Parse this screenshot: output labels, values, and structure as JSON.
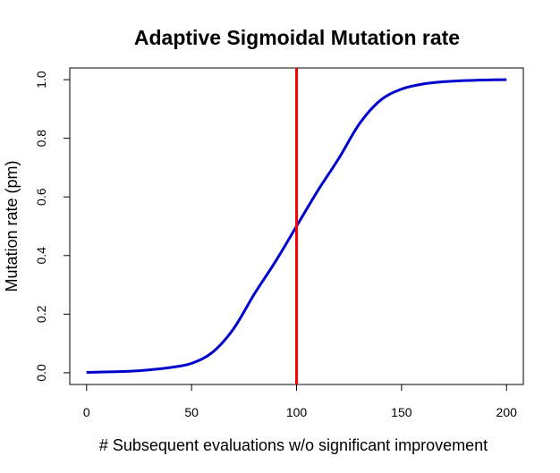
{
  "chart_data": {
    "type": "line",
    "title": "Adaptive Sigmoidal Mutation rate",
    "xlabel": "# Subsequent evaluations w/o significant improvement",
    "ylabel": "Mutation rate (pm)",
    "xlim": [
      -8,
      208
    ],
    "ylim": [
      -0.04,
      1.04
    ],
    "x_ticks": [
      0,
      50,
      100,
      150,
      200
    ],
    "y_ticks": [
      0.0,
      0.2,
      0.4,
      0.6,
      0.8,
      1.0
    ],
    "x_tick_labels": [
      "0",
      "50",
      "100",
      "150",
      "200"
    ],
    "y_tick_labels": [
      "0.0",
      "0.2",
      "0.4",
      "0.6",
      "0.8",
      "1.0"
    ],
    "grid": false,
    "series": [
      {
        "color": "#0000cd",
        "x": [
          0,
          10,
          20,
          30,
          40,
          50,
          60,
          70,
          80,
          90,
          100,
          110,
          120,
          130,
          140,
          150,
          160,
          170,
          180,
          190,
          200
        ],
        "y": [
          0.001,
          0.003,
          0.005,
          0.01,
          0.018,
          0.032,
          0.07,
          0.15,
          0.27,
          0.38,
          0.5,
          0.62,
          0.73,
          0.85,
          0.93,
          0.968,
          0.985,
          0.993,
          0.997,
          0.999,
          1.0
        ]
      }
    ],
    "vlines": [
      {
        "x": 100,
        "color": "#ff0000"
      }
    ]
  }
}
